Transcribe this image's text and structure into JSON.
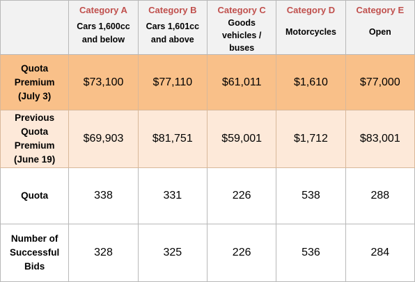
{
  "categories": [
    {
      "name": "Category A",
      "desc": "Cars 1,600cc and below"
    },
    {
      "name": "Category B",
      "desc": "Cars 1,601cc and above"
    },
    {
      "name": "Category C",
      "desc": "Goods vehicles / buses"
    },
    {
      "name": "Category D",
      "desc": "Motorcycles"
    },
    {
      "name": "Category E",
      "desc": "Open"
    }
  ],
  "rows": [
    {
      "label": "Quota Premium (July 3)",
      "values": [
        "$73,100",
        "$77,110",
        "$61,011",
        "$1,610",
        "$77,000"
      ]
    },
    {
      "label": "Previous Quota Premium (June 19)",
      "values": [
        "$69,903",
        "$81,751",
        "$59,001",
        "$1,712",
        "$83,001"
      ]
    },
    {
      "label": "Quota",
      "values": [
        "338",
        "331",
        "226",
        "538",
        "288"
      ]
    },
    {
      "label": "Number of Successful Bids",
      "values": [
        "328",
        "325",
        "226",
        "536",
        "284"
      ]
    }
  ],
  "colors": {
    "category_header": "#c0504d",
    "current_premium_row": "#f9c089",
    "previous_premium_row": "#fde9d9",
    "header_row": "#f2f2f2"
  }
}
